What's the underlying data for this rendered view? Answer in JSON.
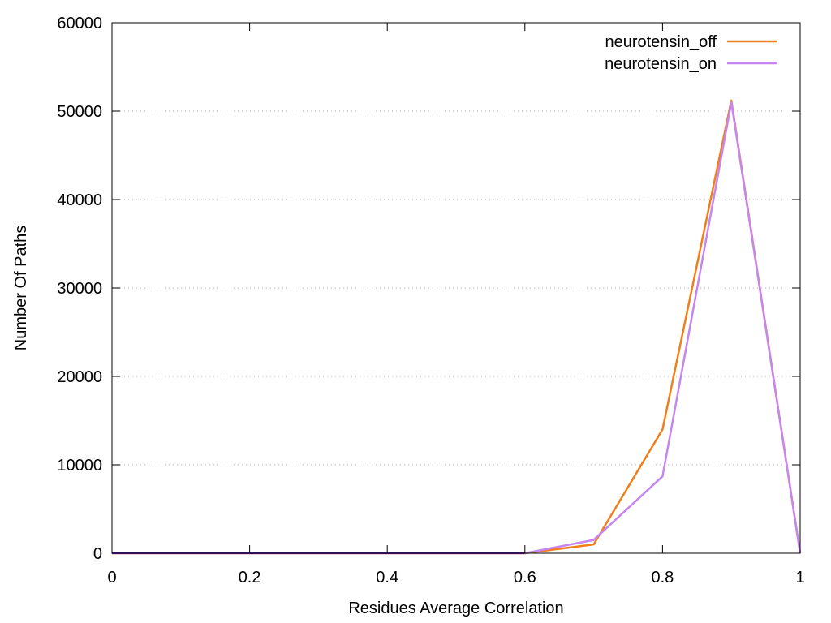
{
  "chart_data": {
    "type": "line",
    "title": "",
    "xlabel": "Residues Average Correlation",
    "ylabel": "Number Of Paths",
    "xlim": [
      0,
      1
    ],
    "ylim": [
      0,
      60000
    ],
    "xticks": [
      0,
      0.2,
      0.4,
      0.6,
      0.8,
      1
    ],
    "xtick_labels": [
      "0",
      "0.2",
      "0.4",
      "0.6",
      "0.8",
      "1"
    ],
    "yticks": [
      0,
      10000,
      20000,
      30000,
      40000,
      50000,
      60000
    ],
    "ytick_labels": [
      "0",
      "10000",
      "20000",
      "30000",
      "40000",
      "50000",
      "60000"
    ],
    "grid": "horizontal-dotted",
    "legend_position": "top-right",
    "x": [
      0,
      0.1,
      0.2,
      0.3,
      0.4,
      0.5,
      0.6,
      0.7,
      0.8,
      0.9,
      1.0
    ],
    "series": [
      {
        "name": "neurotensin_off",
        "color": "#f07f1b",
        "values": [
          0,
          0,
          0,
          0,
          0,
          0,
          0,
          1000,
          14000,
          51200,
          0
        ]
      },
      {
        "name": "neurotensin_on",
        "color": "#c586ef",
        "values": [
          0,
          0,
          0,
          0,
          0,
          0,
          0,
          1500,
          8700,
          51000,
          0
        ]
      }
    ],
    "baseline_color": "#5b1fa8"
  }
}
